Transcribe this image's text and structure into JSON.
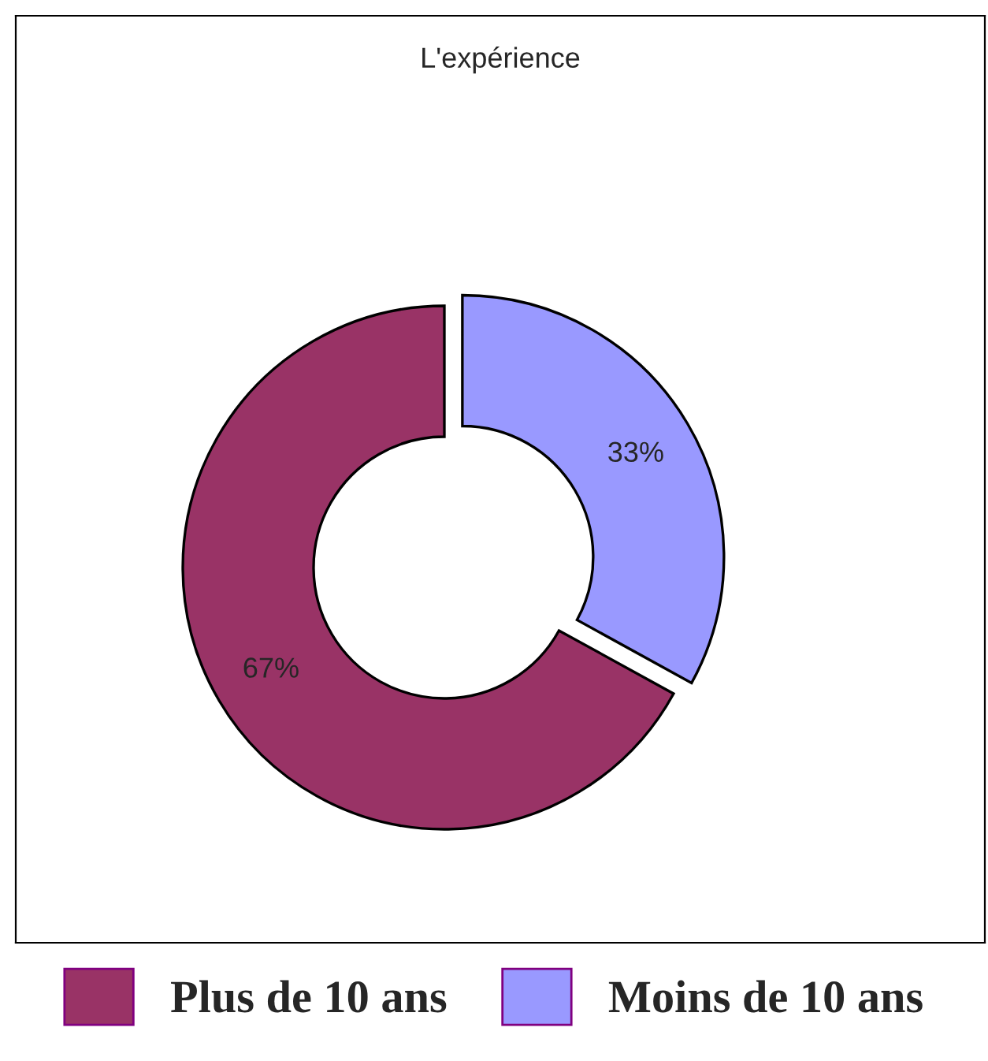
{
  "chart_data": {
    "type": "donut",
    "title": "L'expérience",
    "categories": [
      "Plus de 10 ans",
      "Moins de 10 ans"
    ],
    "values": [
      67,
      33
    ],
    "colors": [
      "#993366",
      "#9999ff"
    ],
    "value_labels": [
      "67%",
      "33%"
    ],
    "legend": "bottom"
  }
}
